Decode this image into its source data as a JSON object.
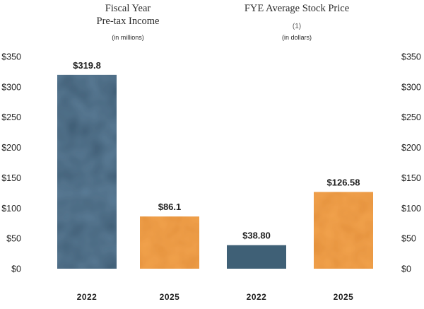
{
  "chart_data": [
    {
      "type": "bar",
      "title_line1": "Fiscal Year",
      "title_line2": "Pre-tax Income",
      "subtitle": "(in millions)",
      "categories": [
        "2022",
        "2025"
      ],
      "values": [
        319.8,
        86.1
      ],
      "data_labels": [
        "$319.8",
        "$86.1"
      ],
      "colors": [
        "#5a7a94",
        "#f0a04b"
      ],
      "ylim": [
        0,
        350
      ],
      "yticks": [
        "$0",
        "$50",
        "$100",
        "$150",
        "$200",
        "$250",
        "$300",
        "$350"
      ],
      "axis_side": "left"
    },
    {
      "type": "bar",
      "title": "FYE Average Stock Price",
      "footnote_ref": "(1)",
      "subtitle": "(in dollars)",
      "categories": [
        "2022",
        "2025"
      ],
      "values": [
        38.8,
        126.58
      ],
      "data_labels": [
        "$38.80",
        "$126.58"
      ],
      "colors": [
        "#3f6076",
        "#f0a04b"
      ],
      "ylim": [
        0,
        350
      ],
      "yticks": [
        "$0",
        "$50",
        "$100",
        "$150",
        "$200",
        "$250",
        "$300",
        "$350"
      ],
      "axis_side": "right"
    }
  ]
}
